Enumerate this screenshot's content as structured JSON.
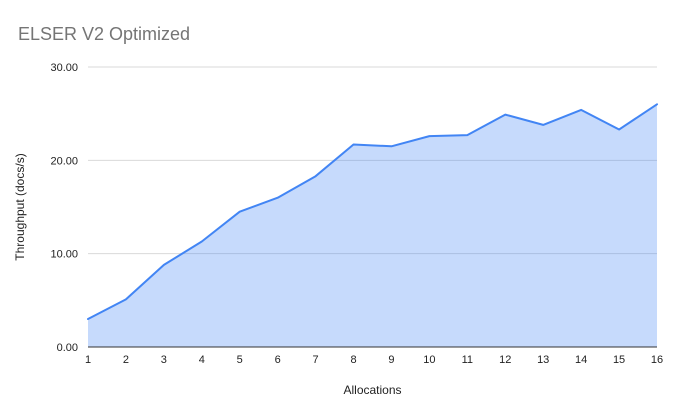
{
  "chart": {
    "title": "ELSER V2 Optimized"
  },
  "chart_data": {
    "type": "area",
    "title": "ELSER V2 Optimized",
    "xlabel": "Allocations",
    "ylabel": "Throughput (docs/s)",
    "x": [
      1,
      2,
      3,
      4,
      5,
      6,
      7,
      8,
      9,
      10,
      11,
      12,
      13,
      14,
      15,
      16
    ],
    "x_tick_labels": [
      "1",
      "2",
      "3",
      "4",
      "5",
      "6",
      "7",
      "8",
      "9",
      "10",
      "11",
      "12",
      "13",
      "14",
      "15",
      "16"
    ],
    "values": [
      3.0,
      5.1,
      8.8,
      11.3,
      14.5,
      16.0,
      18.3,
      21.7,
      21.5,
      22.6,
      22.7,
      24.9,
      23.8,
      25.4,
      23.3,
      26.0
    ],
    "xlim": [
      1,
      16
    ],
    "ylim": [
      0,
      30
    ],
    "y_ticks": [
      0,
      10,
      20,
      30
    ],
    "y_tick_labels": [
      "0.00",
      "10.00",
      "20.00",
      "30.00"
    ],
    "grid": true,
    "legend": "none",
    "colors": {
      "background": "#ffffff",
      "line": "#4285f4",
      "fill": "rgba(66,133,244,0.3)",
      "gridline": "#d9d9d9",
      "axis_line": "#333333",
      "title_text": "#757575",
      "tick_text": "#222222"
    }
  }
}
